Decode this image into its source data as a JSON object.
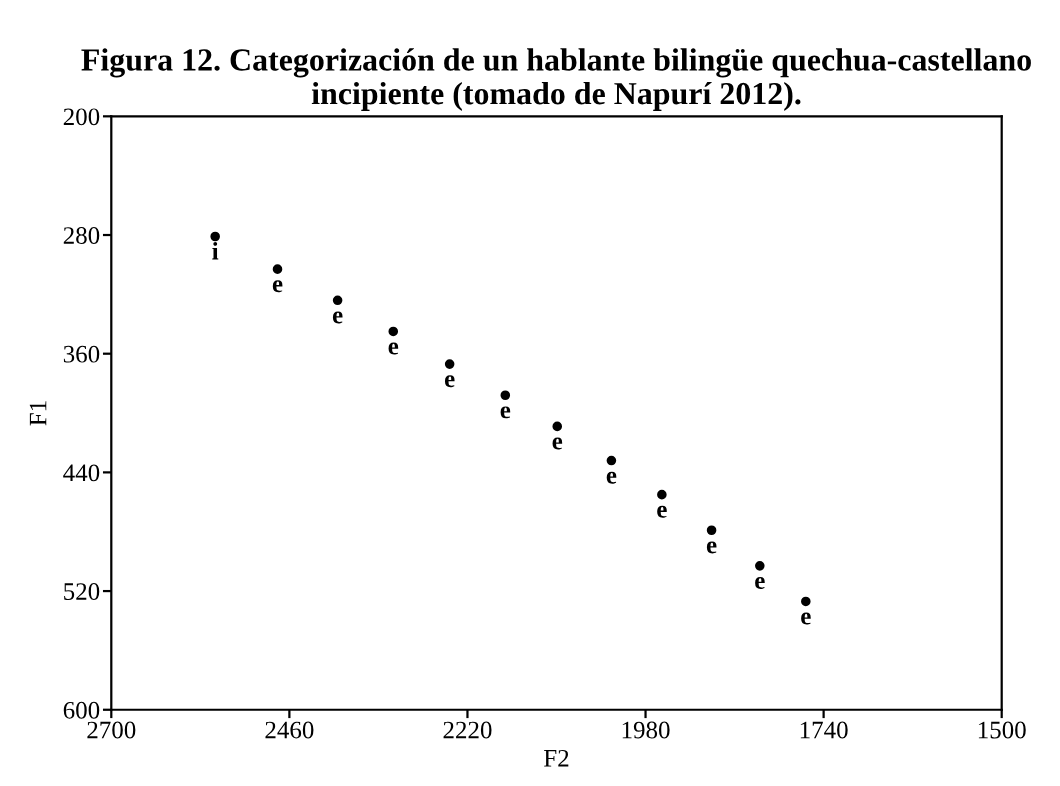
{
  "chart_data": {
    "type": "scatter",
    "title": "Figura 12. Categorización de un hablante bilingüe quechua-castellano incipiente (tomado de Napurí 2012).",
    "xlabel": "F2",
    "ylabel": "F1",
    "x": [
      2560,
      2476,
      2395,
      2320,
      2244,
      2169,
      2099,
      2026,
      1958,
      1891,
      1826,
      1764
    ],
    "series": [
      {
        "color": "#000000",
        "values": [
          281,
          303,
          324,
          345,
          367,
          388,
          409,
          432,
          455,
          479,
          503,
          527
        ]
      }
    ],
    "marker": "circle",
    "annotations": [
      {
        "text": "i",
        "x": 2560,
        "y": 281
      },
      {
        "text": "e",
        "x": 2476,
        "y": 303
      },
      {
        "text": "e",
        "x": 2395,
        "y": 324
      },
      {
        "text": "e",
        "x": 2320,
        "y": 345
      },
      {
        "text": "e",
        "x": 2244,
        "y": 367
      },
      {
        "text": "e",
        "x": 2169,
        "y": 388
      },
      {
        "text": "e",
        "x": 2099,
        "y": 409
      },
      {
        "text": "e",
        "x": 2026,
        "y": 432
      },
      {
        "text": "e",
        "x": 1958,
        "y": 455
      },
      {
        "text": "e",
        "x": 1891,
        "y": 479
      },
      {
        "text": "e",
        "x": 1826,
        "y": 503
      },
      {
        "text": "e",
        "x": 1764,
        "y": 527
      }
    ],
    "xlim": [
      2700,
      1500
    ],
    "xticks": [
      2700,
      2460,
      2220,
      1980,
      1740,
      1500
    ],
    "ylim": [
      600,
      200
    ],
    "yticks": [
      200,
      280,
      360,
      440,
      520,
      600
    ],
    "grid": false
  }
}
